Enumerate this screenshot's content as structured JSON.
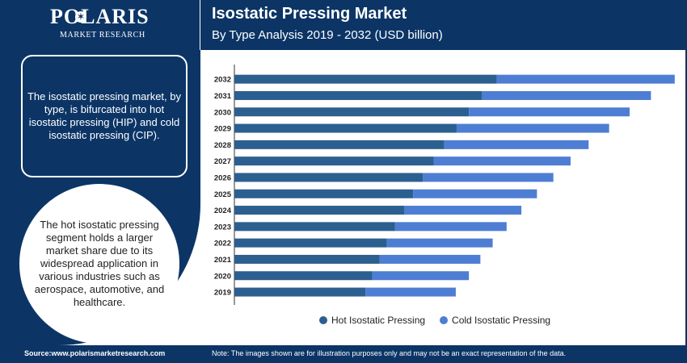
{
  "brand": {
    "name": "POLARIS",
    "tagline": "MARKET RESEARCH"
  },
  "header": {
    "title": "Isostatic Pressing Market",
    "subtitle": "By Type Analysis 2019 - 2032 (USD billion)"
  },
  "sidebar": {
    "box_text": "The isostatic pressing market, by type, is bifurcated into hot isostatic pressing (HIP) and cold isostatic pressing (CIP).",
    "circle_text": "The hot isostatic pressing segment holds a larger market share due to its widespread application in various industries such as aerospace, automotive, and healthcare."
  },
  "legend": {
    "hot": "Hot Isostatic Pressing",
    "cold": "Cold Isostatic Pressing"
  },
  "footer": {
    "source": "Source:www.polarismarketresearch.com",
    "note": "Note: The images shown are for illustration purposes only and may not be an exact representation of the data."
  },
  "colors": {
    "navy": "#0c3566",
    "hot": "#2b5f8f",
    "cold": "#4e7ed3"
  },
  "chart_data": {
    "type": "bar",
    "orientation": "horizontal",
    "stacked": true,
    "categories": [
      "2032",
      "2031",
      "2030",
      "2029",
      "2028",
      "2027",
      "2026",
      "2025",
      "2024",
      "2023",
      "2022",
      "2021",
      "2020",
      "2019"
    ],
    "series": [
      {
        "name": "Hot Isostatic Pressing",
        "color": "#2b5f8f",
        "values": [
          3.2,
          3.02,
          2.86,
          2.71,
          2.56,
          2.43,
          2.3,
          2.18,
          2.07,
          1.96,
          1.86,
          1.77,
          1.68,
          1.6
        ]
      },
      {
        "name": "Cold Isostatic Pressing",
        "color": "#4e7ed3",
        "values": [
          2.17,
          2.06,
          1.96,
          1.86,
          1.76,
          1.67,
          1.59,
          1.51,
          1.43,
          1.36,
          1.29,
          1.23,
          1.18,
          1.1
        ]
      }
    ],
    "xlim": [
      0,
      5.5
    ],
    "grid": false,
    "legend_position": "bottom"
  }
}
